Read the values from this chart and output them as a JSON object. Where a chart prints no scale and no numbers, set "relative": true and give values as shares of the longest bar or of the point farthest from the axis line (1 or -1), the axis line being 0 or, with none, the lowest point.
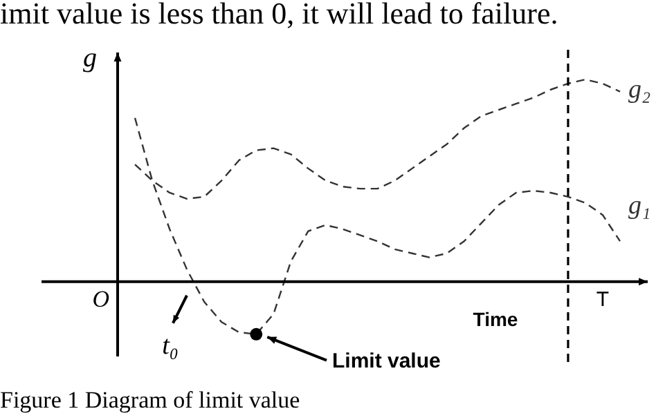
{
  "chart_data": {
    "type": "line",
    "title": "imit value is less than 0, it will lead to failure.",
    "xlabel": "Time",
    "ylabel": "g",
    "relative": true,
    "legend": false,
    "line_style": "dashed",
    "marker": "none",
    "categories": [
      null,
      null,
      null,
      null,
      null,
      null,
      null,
      null,
      null,
      null,
      null,
      null,
      null,
      null,
      null,
      null,
      null,
      null,
      null,
      null,
      null,
      null,
      null,
      null,
      null,
      null,
      null,
      null,
      null,
      null
    ],
    "series": [
      {
        "name": "g₂",
        "color": "#333333",
        "values": [
          null,
          0.58,
          0.5,
          0.44,
          0.41,
          0.42,
          0.5,
          0.6,
          0.65,
          0.66,
          0.63,
          0.56,
          0.5,
          0.47,
          0.46,
          0.46,
          0.5,
          0.56,
          0.62,
          0.68,
          0.76,
          0.82,
          0.85,
          0.88,
          0.91,
          0.95,
          0.98,
          1.0,
          0.98,
          0.94
        ]
      },
      {
        "name": "g₁",
        "color": "#333333",
        "values": [
          null,
          0.81,
          0.5,
          0.26,
          0.06,
          -0.1,
          -0.2,
          -0.25,
          -0.26,
          -0.16,
          0.1,
          0.25,
          0.28,
          0.26,
          0.23,
          0.2,
          0.16,
          0.14,
          0.12,
          0.14,
          0.2,
          0.29,
          0.38,
          0.44,
          0.45,
          0.44,
          0.42,
          0.39,
          0.33,
          0.2
        ]
      }
    ],
    "annotations": [
      "O",
      "t₀",
      "Limit value",
      "T",
      "Figure 1  Diagram of limit value"
    ]
  }
}
